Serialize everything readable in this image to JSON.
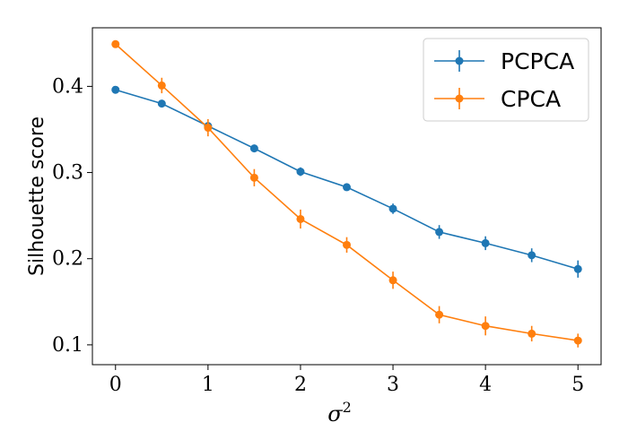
{
  "chart_data": {
    "type": "line",
    "title": "",
    "xlabel": "σ",
    "xlabel_sup": "2",
    "ylabel": "Silhouette score",
    "xlim": [
      -0.25,
      5.25
    ],
    "ylim": [
      0.077,
      0.468
    ],
    "xticks": [
      0,
      1,
      2,
      3,
      4,
      5
    ],
    "xtick_labels": [
      "0",
      "1",
      "2",
      "3",
      "4",
      "5"
    ],
    "yticks": [
      0.1,
      0.2,
      0.3,
      0.4
    ],
    "ytick_labels": [
      "0.1",
      "0.2",
      "0.3",
      "0.4"
    ],
    "grid": false,
    "legend_position": "top-right",
    "x": [
      0,
      0.5,
      1,
      1.5,
      2,
      2.5,
      3,
      3.5,
      4,
      4.5,
      5
    ],
    "series": [
      {
        "name": "PCPCA",
        "color": "#1f77b4",
        "values": [
          0.396,
          0.38,
          0.354,
          0.328,
          0.301,
          0.283,
          0.258,
          0.231,
          0.218,
          0.204,
          0.188
        ],
        "errors": [
          0.002,
          0.002,
          0.003,
          0.003,
          0.005,
          0.004,
          0.006,
          0.008,
          0.008,
          0.008,
          0.01
        ]
      },
      {
        "name": "CPCA",
        "color": "#ff7f0e",
        "values": [
          0.449,
          0.401,
          0.352,
          0.294,
          0.246,
          0.216,
          0.175,
          0.135,
          0.122,
          0.113,
          0.105
        ],
        "errors": [
          0.002,
          0.009,
          0.01,
          0.01,
          0.011,
          0.009,
          0.01,
          0.01,
          0.011,
          0.009,
          0.008
        ]
      }
    ]
  }
}
